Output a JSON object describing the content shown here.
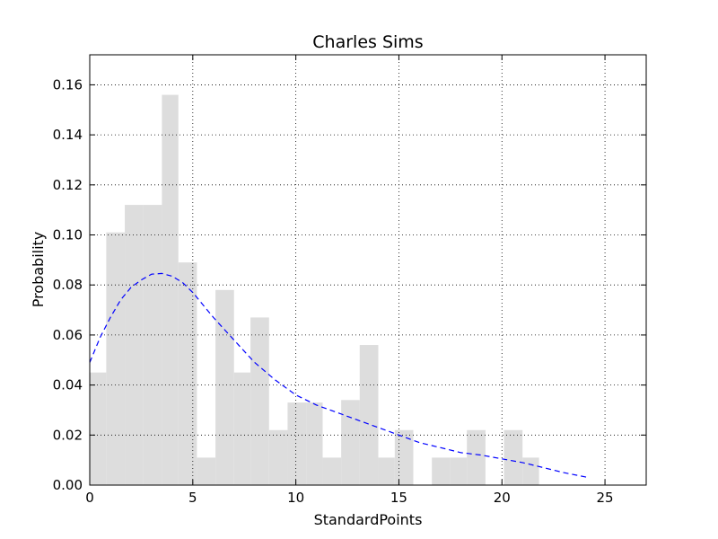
{
  "chart_data": {
    "type": "bar",
    "title": "Charles Sims",
    "xlabel": "StandardPoints",
    "ylabel": "Probability",
    "xlim": [
      0,
      27
    ],
    "ylim": [
      0,
      0.172
    ],
    "grid": true,
    "x_ticks": [
      "0",
      "5",
      "10",
      "15",
      "20",
      "25"
    ],
    "y_ticks": [
      "0.00",
      "0.02",
      "0.04",
      "0.06",
      "0.08",
      "0.10",
      "0.12",
      "0.14",
      "0.16"
    ],
    "histogram": {
      "name": "",
      "bin_edges": [
        0,
        0.8,
        1.7,
        2.6,
        3.5,
        4.3,
        5.2,
        6.1,
        7.0,
        7.8,
        8.7,
        9.6,
        10.5,
        11.3,
        12.2,
        13.1,
        14.0,
        14.8,
        15.7,
        16.6,
        17.5,
        18.3,
        19.2,
        20.1,
        21.0,
        21.8,
        22.7
      ],
      "values": [
        0.045,
        0.101,
        0.112,
        0.112,
        0.156,
        0.089,
        0.011,
        0.078,
        0.045,
        0.067,
        0.022,
        0.033,
        0.033,
        0.011,
        0.034,
        0.056,
        0.011,
        0.022,
        0.0,
        0.011,
        0.011,
        0.022,
        0.0,
        0.022,
        0.011,
        0.0
      ],
      "color": "#dddddd"
    },
    "curve": {
      "name": "",
      "style": "dashed",
      "color": "#0000ff",
      "x": [
        0,
        0.5,
        1,
        1.5,
        2,
        2.5,
        3,
        3.5,
        4,
        4.5,
        5,
        6,
        7,
        8,
        9,
        10,
        11,
        12,
        13,
        14,
        15,
        16,
        17,
        18,
        19,
        20,
        21,
        22,
        23,
        24.2
      ],
      "y": [
        0.049,
        0.059,
        0.067,
        0.074,
        0.079,
        0.082,
        0.0843,
        0.0846,
        0.0835,
        0.081,
        0.077,
        0.067,
        0.058,
        0.049,
        0.042,
        0.036,
        0.032,
        0.029,
        0.026,
        0.023,
        0.02,
        0.017,
        0.015,
        0.013,
        0.012,
        0.0105,
        0.009,
        0.007,
        0.005,
        0.003
      ]
    }
  }
}
